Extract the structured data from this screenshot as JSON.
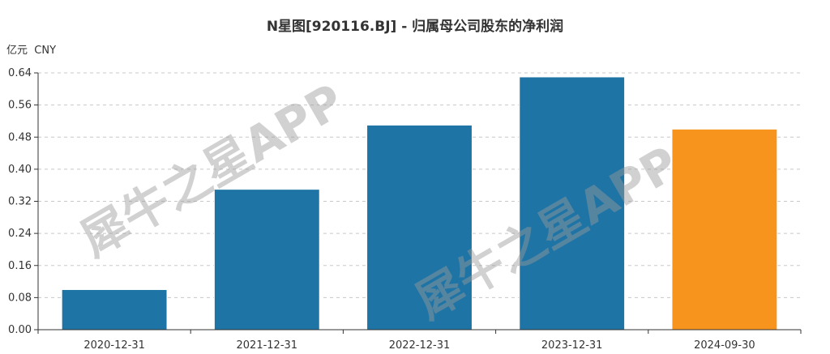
{
  "chart_data": {
    "type": "bar",
    "title": "N星图[920116.BJ] - 归属母公司股东的净利润",
    "ylabel": "亿元  CNY",
    "categories": [
      "2020-12-31",
      "2021-12-31",
      "2022-12-31",
      "2023-12-31",
      "2024-09-30"
    ],
    "values": [
      0.1,
      0.35,
      0.51,
      0.63,
      0.5
    ],
    "ylim": [
      0,
      0.64
    ],
    "yticks": [
      "0.00",
      "0.08",
      "0.16",
      "0.24",
      "0.32",
      "0.40",
      "0.48",
      "0.56",
      "0.64"
    ],
    "bar_colors": [
      "#1f74a6",
      "#1f74a6",
      "#1f74a6",
      "#1f74a6",
      "#f7941d"
    ],
    "grid": true
  },
  "watermark": "犀牛之星APP"
}
